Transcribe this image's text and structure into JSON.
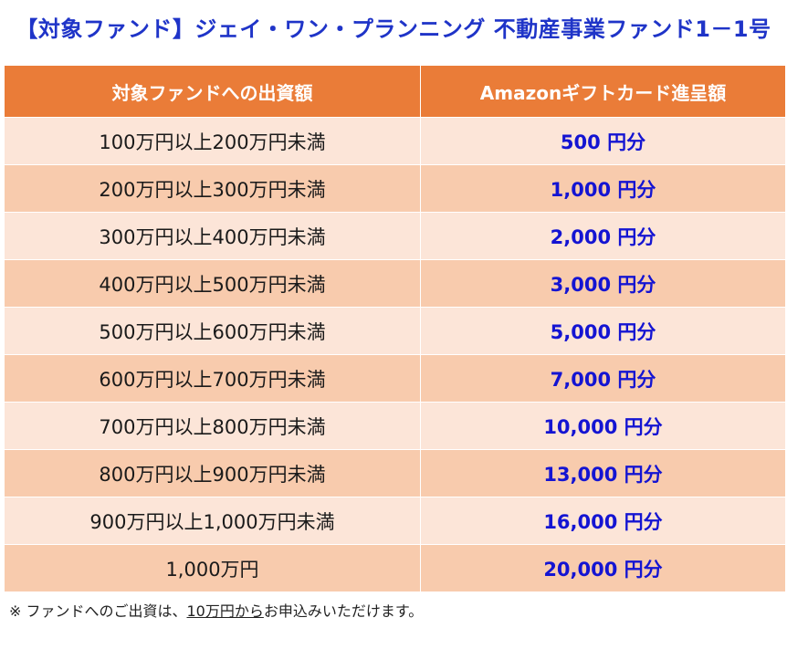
{
  "title": "【対象ファンド】ジェイ・ワン・プランニング 不動産事業ファンド1－1号",
  "colors": {
    "title": "#1f34c8",
    "header_bg": "#ea7c38",
    "row_light": "#fce5d8",
    "row_dark": "#f8cbad",
    "reward_text": "#1414d2"
  },
  "table": {
    "headers": [
      "対象ファンドへの出資額",
      "Amazonギフトカード進呈額"
    ],
    "rows": [
      {
        "amount": "100万円以上200万円未満",
        "reward": "500 円分"
      },
      {
        "amount": "200万円以上300万円未満",
        "reward": "1,000 円分"
      },
      {
        "amount": "300万円以上400万円未満",
        "reward": "2,000 円分"
      },
      {
        "amount": "400万円以上500万円未満",
        "reward": "3,000 円分"
      },
      {
        "amount": "500万円以上600万円未満",
        "reward": "5,000 円分"
      },
      {
        "amount": "600万円以上700万円未満",
        "reward": "7,000 円分"
      },
      {
        "amount": "700万円以上800万円未満",
        "reward": "10,000 円分"
      },
      {
        "amount": "800万円以上900万円未満",
        "reward": "13,000 円分"
      },
      {
        "amount": "900万円以上1,000万円未満",
        "reward": "16,000 円分"
      },
      {
        "amount": "1,000万円",
        "reward": "20,000 円分"
      }
    ]
  },
  "note": {
    "prefix": "※ ファンドへのご出資は、",
    "emphasis": "10万円から",
    "suffix": "お申込みいただけます。"
  }
}
